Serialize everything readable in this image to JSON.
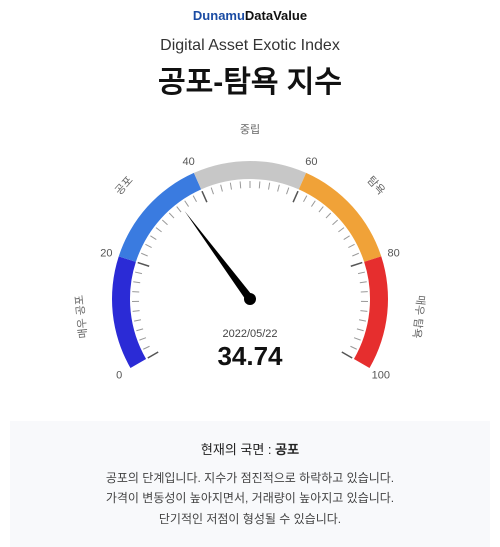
{
  "logo": {
    "part1": "Dunamu",
    "part2": "DataValue"
  },
  "subtitle": "Digital Asset Exotic Index",
  "title": "공포-탐욕 지수",
  "gauge": {
    "value": 34.74,
    "date": "2022/05/22",
    "min": 0,
    "max": 100,
    "start_angle_deg": -210,
    "end_angle_deg": 30,
    "arc_inner_r": 120,
    "arc_outer_r": 138,
    "needle_len": 110,
    "zones": [
      {
        "from": 0,
        "to": 20,
        "color": "#2b2bd6",
        "label": "매우 공포"
      },
      {
        "from": 20,
        "to": 40,
        "color": "#3a7be0",
        "label": "공포"
      },
      {
        "from": 40,
        "to": 60,
        "color": "#c7c7c7",
        "label": "중립"
      },
      {
        "from": 60,
        "to": 80,
        "color": "#f0a238",
        "label": "탐욕"
      },
      {
        "from": 80,
        "to": 100,
        "color": "#e62e2e",
        "label": "매우 탐욕"
      }
    ],
    "ticks_major": [
      0,
      20,
      40,
      60,
      80,
      100
    ],
    "tick_minor_step": 2,
    "tick_color": "#999999",
    "tick_major_color": "#555555",
    "needle_color": "#000000",
    "label_fontsize": 11,
    "value_fontsize": 26
  },
  "description": {
    "head_prefix": "현재의 국면 : ",
    "head_state": "공포",
    "lines": [
      "공포의 단계입니다. 지수가 점진적으로 하락하고 있습니다.",
      "가격이 변동성이 높아지면서, 거래량이 높아지고 있습니다.",
      "단기적인 저점이 형성될 수 있습니다."
    ],
    "bg_color": "#f8f9fb"
  }
}
